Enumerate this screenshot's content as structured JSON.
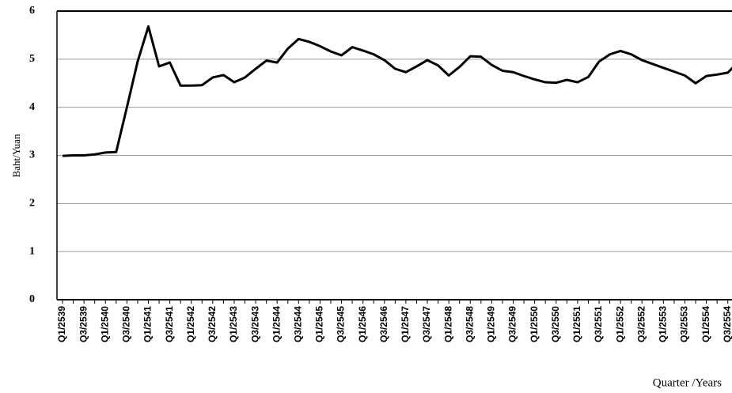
{
  "chart_data": {
    "type": "line",
    "y_label": "Baht/Yuan",
    "x_label": "Quarter /Years",
    "categories": [
      "Q1/2539",
      null,
      "Q3/2539",
      null,
      "Q1/2540",
      null,
      "Q3/2540",
      null,
      "Q1/2541",
      null,
      "Q3/2541",
      null,
      "Q1/2542",
      null,
      "Q3/2542",
      null,
      "Q1/2543",
      null,
      "Q3/2543",
      null,
      "Q1/2544",
      null,
      "Q3/2544",
      null,
      "Q1/2545",
      null,
      "Q3/2545",
      null,
      "Q1/2546",
      null,
      "Q3/2546",
      null,
      "Q1/2547",
      null,
      "Q3/2547",
      null,
      "Q1/2548",
      null,
      "Q3/2548",
      null,
      "Q1/2549",
      null,
      "Q3/2549",
      null,
      "Q1/2550",
      null,
      "Q3/2550",
      null,
      "Q1/2551",
      null,
      "Q3/2551",
      null,
      "Q1/2552",
      null,
      "Q3/2552",
      null,
      "Q1/2553",
      null,
      "Q3/2553",
      null,
      "Q1/2554",
      null,
      "Q3/2554",
      null
    ],
    "values": [
      2.99,
      3.0,
      3.0,
      3.02,
      3.06,
      3.07,
      4.0,
      4.95,
      5.68,
      4.85,
      4.93,
      4.45,
      4.45,
      4.46,
      4.62,
      4.67,
      4.52,
      4.62,
      4.8,
      4.97,
      4.93,
      5.22,
      5.42,
      5.36,
      5.27,
      5.16,
      5.08,
      5.25,
      5.18,
      5.1,
      4.98,
      4.8,
      4.73,
      4.85,
      4.98,
      4.87,
      4.66,
      4.84,
      5.06,
      5.05,
      4.88,
      4.76,
      4.73,
      4.65,
      4.58,
      4.52,
      4.51,
      4.57,
      4.52,
      4.63,
      4.95,
      5.1,
      5.17,
      5.1,
      4.98,
      4.9,
      4.82,
      4.74,
      4.66,
      4.5,
      4.65,
      4.68,
      4.72,
      4.95
    ],
    "color": "#000000",
    "ylim": [
      0,
      6
    ],
    "yticks": [
      0,
      1,
      2,
      3,
      4,
      5,
      6
    ],
    "grid": true
  }
}
